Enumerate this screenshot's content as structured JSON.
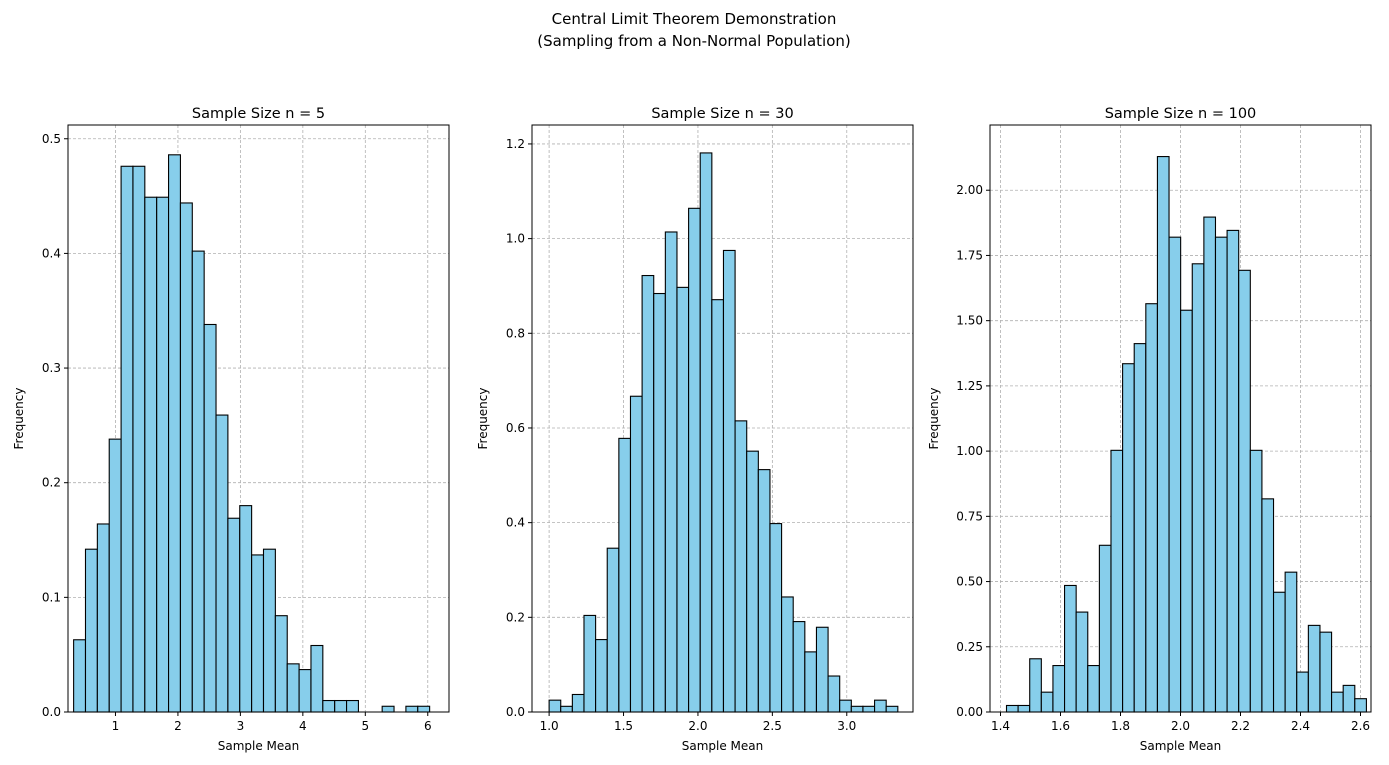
{
  "figure": {
    "suptitle_line1": "Central Limit Theorem Demonstration",
    "suptitle_line2": "(Sampling from a Non-Normal Population)"
  },
  "chart_data": [
    {
      "type": "bar",
      "title": "Sample Size n = 5",
      "xlabel": "Sample Mean",
      "ylabel": "Frequency",
      "xlim": [
        0.24,
        6.34
      ],
      "ylim": [
        0,
        0.512
      ],
      "grid": true,
      "bar_color": "#87ceeb",
      "edge_color": "#000000",
      "xticks": [
        1,
        2,
        3,
        4,
        5,
        6
      ],
      "xtick_labels": [
        "1",
        "2",
        "3",
        "4",
        "5",
        "6"
      ],
      "yticks": [
        0,
        0.1,
        0.2,
        0.3,
        0.4,
        0.5
      ],
      "ytick_labels": [
        "0.0",
        "0.1",
        "0.2",
        "0.3",
        "0.4",
        "0.5"
      ],
      "bins": {
        "start": 0.33,
        "width": 0.19
      },
      "values": [
        0.063,
        0.142,
        0.164,
        0.238,
        0.476,
        0.476,
        0.449,
        0.449,
        0.486,
        0.444,
        0.402,
        0.338,
        0.259,
        0.169,
        0.18,
        0.137,
        0.142,
        0.084,
        0.042,
        0.037,
        0.058,
        0.01,
        0.01,
        0.01,
        0,
        0,
        0.005,
        0,
        0.005,
        0.005
      ]
    },
    {
      "type": "bar",
      "title": "Sample Size n = 30",
      "xlabel": "Sample Mean",
      "ylabel": "Frequency",
      "xlim": [
        0.885,
        3.445
      ],
      "ylim": [
        0,
        1.24
      ],
      "grid": true,
      "bar_color": "#87ceeb",
      "edge_color": "#000000",
      "xticks": [
        1.0,
        1.5,
        2.0,
        2.5,
        3.0
      ],
      "xtick_labels": [
        "1.0",
        "1.5",
        "2.0",
        "2.5",
        "3.0"
      ],
      "yticks": [
        0,
        0.2,
        0.4,
        0.6,
        0.8,
        1.0,
        1.2
      ],
      "ytick_labels": [
        "0.0",
        "0.2",
        "0.4",
        "0.6",
        "0.8",
        "1.0",
        "1.2"
      ],
      "bins": {
        "start": 1.0,
        "width": 0.0781
      },
      "values": [
        0.025,
        0.012,
        0.037,
        0.204,
        0.153,
        0.346,
        0.578,
        0.667,
        0.922,
        0.884,
        1.014,
        0.897,
        1.064,
        1.181,
        0.871,
        0.975,
        0.615,
        0.551,
        0.512,
        0.398,
        0.243,
        0.191,
        0.127,
        0.179,
        0.076,
        0.025,
        0.012,
        0.012,
        0.025,
        0.012
      ]
    },
    {
      "type": "bar",
      "title": "Sample Size n = 100",
      "xlabel": "Sample Mean",
      "ylabel": "Frequency",
      "xlim": [
        1.365,
        2.635
      ],
      "ylim": [
        0,
        2.25
      ],
      "grid": true,
      "bar_color": "#87ceeb",
      "edge_color": "#000000",
      "xticks": [
        1.4,
        1.6,
        1.8,
        2.0,
        2.2,
        2.4,
        2.6
      ],
      "xtick_labels": [
        "1.4",
        "1.6",
        "1.8",
        "2.0",
        "2.2",
        "2.4",
        "2.6"
      ],
      "yticks": [
        0,
        0.25,
        0.5,
        0.75,
        1.0,
        1.25,
        1.5,
        1.75,
        2.0
      ],
      "ytick_labels": [
        "0.00",
        "0.25",
        "0.50",
        "0.75",
        "1.00",
        "1.25",
        "1.50",
        "1.75",
        "2.00"
      ],
      "bins": {
        "start": 1.42,
        "width": 0.0387
      },
      "values": [
        0.025,
        0.025,
        0.204,
        0.076,
        0.178,
        0.485,
        0.383,
        0.178,
        0.639,
        1.003,
        1.335,
        1.412,
        1.565,
        2.129,
        1.82,
        1.54,
        1.718,
        1.897,
        1.82,
        1.846,
        1.693,
        1.003,
        0.817,
        0.459,
        0.536,
        0.153,
        0.332,
        0.306,
        0.076,
        0.102,
        0.051
      ]
    }
  ]
}
